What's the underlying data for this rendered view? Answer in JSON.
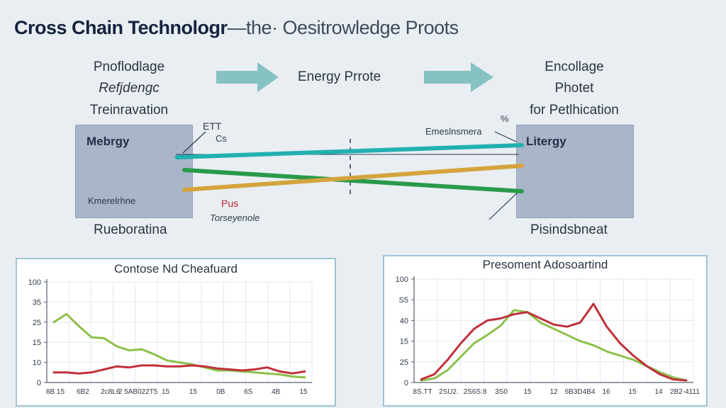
{
  "title": {
    "bold": "Cross Chain Technologr",
    "rest": "—the· Oesitrowledge Proots"
  },
  "left_block": {
    "heading": [
      "Pnoflodlage",
      "Refjdengc",
      "Treinravation"
    ],
    "box_label": "Mebrgy",
    "box_sub": "Kmerelrhne",
    "caption": "Rueboratina"
  },
  "middle": {
    "label": "Energy Prrote",
    "tag_top": "ETT",
    "tag_top2": "Cs",
    "tag_right": "Emeslnsmera",
    "tag_right2": "%",
    "plus_label": "Pus",
    "plus_sub": "Torseyenole"
  },
  "right_block": {
    "heading": [
      "Encollage",
      "Photet",
      "for Petlhication"
    ],
    "box_label": "Litergy",
    "caption": "Pisindsbneat"
  },
  "colors": {
    "teal": "#22b0b0",
    "green": "#2a9a4a",
    "orange": "#d4a43c",
    "lime": "#8cc04a",
    "red": "#c0303a",
    "arrow": "#86c2c2"
  },
  "chart_data": [
    {
      "type": "line",
      "title": "Contose Nd Cheafuard",
      "yticks": [
        "100",
        "35",
        "25",
        "15",
        "10",
        "0"
      ],
      "xticks": [
        "8B 15",
        "6B2",
        "2c8L6",
        "2 5AB022T5",
        "15",
        "15",
        "0B",
        "6S",
        "4B",
        "15"
      ],
      "ylim": [
        0,
        100
      ],
      "x": [
        0,
        1,
        2,
        3,
        4,
        5,
        6,
        7,
        8,
        9,
        10,
        11,
        12,
        13,
        14,
        15,
        16,
        17,
        18,
        19,
        20
      ],
      "series": [
        {
          "name": "green",
          "color": "#8cc04a",
          "values": [
            60,
            68,
            56,
            45,
            44,
            36,
            32,
            33,
            28,
            22,
            20,
            18,
            15,
            12,
            12,
            11,
            10,
            9,
            8,
            6,
            5
          ]
        },
        {
          "name": "red",
          "color": "#c0303a",
          "values": [
            10,
            10,
            9,
            10,
            13,
            16,
            15,
            17,
            17,
            16,
            16,
            17,
            16,
            14,
            13,
            12,
            13,
            15,
            11,
            9,
            11
          ]
        }
      ]
    },
    {
      "type": "line",
      "title": "Presoment Adosoartind",
      "yticks": [
        "100",
        "S5",
        "40",
        "15",
        "25",
        "0"
      ],
      "xticks": [
        "8S.TT",
        "2SU2.",
        "2S6S:8",
        "3S0",
        "15",
        "12",
        "6B3D4B4",
        "16",
        "15",
        "14",
        "2B2-4111"
      ],
      "ylim": [
        0,
        100
      ],
      "x": [
        0,
        1,
        2,
        3,
        4,
        5,
        6,
        7,
        8,
        9,
        10,
        11,
        12,
        13,
        14,
        15,
        16,
        17,
        18,
        19,
        20
      ],
      "series": [
        {
          "name": "green",
          "color": "#8cc04a",
          "values": [
            2,
            4,
            12,
            25,
            38,
            46,
            55,
            70,
            68,
            58,
            52,
            46,
            40,
            36,
            30,
            26,
            22,
            16,
            10,
            5,
            2
          ]
        },
        {
          "name": "red",
          "color": "#c0303a",
          "values": [
            3,
            8,
            22,
            38,
            52,
            60,
            62,
            66,
            68,
            62,
            56,
            54,
            58,
            76,
            54,
            38,
            26,
            16,
            8,
            3,
            2
          ]
        }
      ]
    }
  ]
}
